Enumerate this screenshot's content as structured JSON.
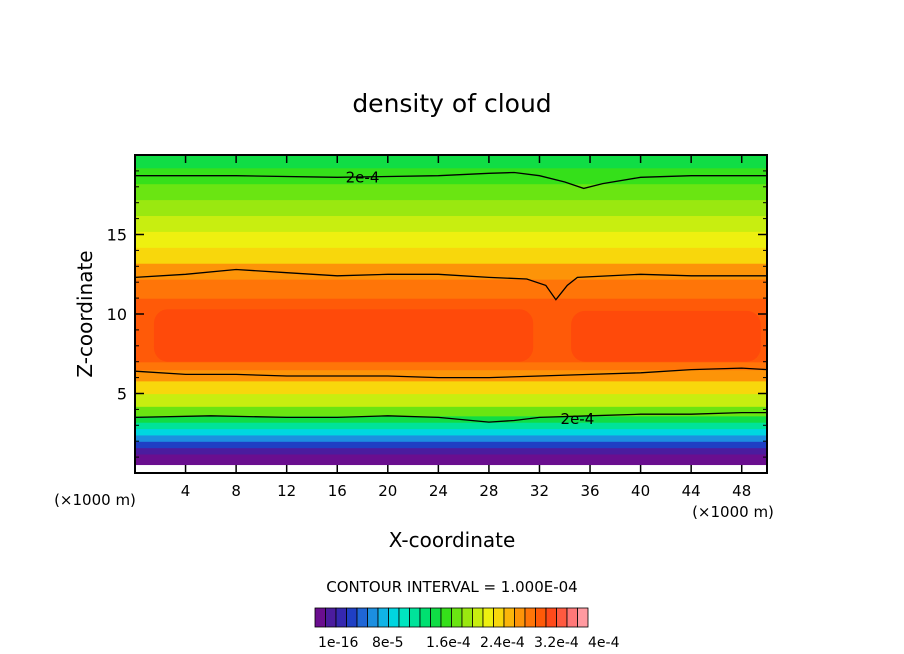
{
  "chart_data": {
    "type": "heatmap",
    "title": "density of cloud",
    "xlabel": "X-coordinate",
    "ylabel": "Z-coordinate",
    "x_unit": "(×1000 m)",
    "xlim": [
      0,
      50
    ],
    "ylim": [
      0,
      20
    ],
    "x_ticks": [
      4,
      8,
      12,
      16,
      20,
      24,
      28,
      32,
      36,
      40,
      44,
      48
    ],
    "y_ticks": [
      5,
      10,
      15
    ],
    "contour_interval_text": "CONTOUR INTERVAL = 1.000E-04",
    "contour_label": "2e-4",
    "colorbar_labels": [
      "1e-16",
      "8e-5",
      "1.6e-4",
      "2.4e-4",
      "3.2e-4",
      "4e-4"
    ],
    "colorbar_colors": [
      "#6a0e8f",
      "#4b1c9e",
      "#3528b0",
      "#1f3fc4",
      "#1f66d6",
      "#1c8fe0",
      "#10b4e6",
      "#00d6e0",
      "#00e6c0",
      "#00e39a",
      "#00e070",
      "#10dd45",
      "#35e01a",
      "#6ae512",
      "#9ae810",
      "#c8ee10",
      "#eef010",
      "#f8d70c",
      "#fbb50a",
      "#fd9408",
      "#ff7508",
      "#ff5a08",
      "#ff4a1a",
      "#ff5a40",
      "#ff7878",
      "#ff9aa0"
    ],
    "z_profile": [
      {
        "z": 0.5,
        "c": 0
      },
      {
        "z": 1.2,
        "c": 1
      },
      {
        "z": 1.6,
        "c": 3
      },
      {
        "z": 2.0,
        "c": 5
      },
      {
        "z": 2.4,
        "c": 7
      },
      {
        "z": 2.8,
        "c": 9
      },
      {
        "z": 3.2,
        "c": 11
      },
      {
        "z": 3.6,
        "c": 13
      },
      {
        "z": 4.2,
        "c": 15
      },
      {
        "z": 5.0,
        "c": 17
      },
      {
        "z": 5.8,
        "c": 19
      },
      {
        "z": 6.5,
        "c": 20
      },
      {
        "z": 7.0,
        "c": 21
      },
      {
        "z": 8.0,
        "c": 21
      },
      {
        "z": 9.0,
        "c": 21
      },
      {
        "z": 10.0,
        "c": 21
      },
      {
        "z": 11.0,
        "c": 20
      },
      {
        "z": 12.2,
        "c": 19
      },
      {
        "z": 13.2,
        "c": 17
      },
      {
        "z": 14.2,
        "c": 16
      },
      {
        "z": 15.2,
        "c": 15
      },
      {
        "z": 16.2,
        "c": 14
      },
      {
        "z": 17.2,
        "c": 13
      },
      {
        "z": 18.2,
        "c": 12
      },
      {
        "z": 19.2,
        "c": 11
      },
      {
        "z": 20.0,
        "c": 11
      }
    ],
    "core_color": "#ff4a0a",
    "core_blobs": [
      {
        "x0": 1.5,
        "x1": 31.5,
        "z0": 7.0,
        "z1": 10.3
      },
      {
        "x0": 34.5,
        "x1": 49.5,
        "z0": 7.0,
        "z1": 10.2
      }
    ],
    "contour_2e4_upper": [
      [
        0,
        12.3
      ],
      [
        4,
        12.5
      ],
      [
        8,
        12.8
      ],
      [
        12,
        12.6
      ],
      [
        16,
        12.4
      ],
      [
        20,
        12.5
      ],
      [
        24,
        12.5
      ],
      [
        28,
        12.3
      ],
      [
        31,
        12.2
      ],
      [
        32.5,
        11.8
      ],
      [
        33.3,
        10.9
      ],
      [
        34.2,
        11.8
      ],
      [
        35,
        12.3
      ],
      [
        40,
        12.5
      ],
      [
        44,
        12.4
      ],
      [
        50,
        12.4
      ]
    ],
    "contour_2e4_top": [
      [
        0,
        18.7
      ],
      [
        8,
        18.7
      ],
      [
        16,
        18.6
      ],
      [
        24,
        18.7
      ],
      [
        28,
        18.85
      ],
      [
        30,
        18.9
      ],
      [
        32,
        18.7
      ],
      [
        34,
        18.3
      ],
      [
        35.5,
        17.9
      ],
      [
        37,
        18.2
      ],
      [
        40,
        18.6
      ],
      [
        44,
        18.7
      ],
      [
        50,
        18.7
      ]
    ],
    "contour_2e4_lower": [
      [
        0,
        3.5
      ],
      [
        6,
        3.6
      ],
      [
        12,
        3.5
      ],
      [
        16,
        3.5
      ],
      [
        20,
        3.6
      ],
      [
        24,
        3.5
      ],
      [
        28,
        3.2
      ],
      [
        30,
        3.3
      ],
      [
        32,
        3.5
      ],
      [
        36,
        3.6
      ],
      [
        40,
        3.7
      ],
      [
        44,
        3.7
      ],
      [
        48,
        3.8
      ],
      [
        50,
        3.8
      ]
    ],
    "contour_mid_lower": [
      [
        0,
        6.4
      ],
      [
        4,
        6.2
      ],
      [
        8,
        6.2
      ],
      [
        12,
        6.1
      ],
      [
        16,
        6.1
      ],
      [
        20,
        6.1
      ],
      [
        24,
        6.0
      ],
      [
        28,
        6.0
      ],
      [
        32,
        6.1
      ],
      [
        36,
        6.2
      ],
      [
        40,
        6.3
      ],
      [
        44,
        6.5
      ],
      [
        48,
        6.6
      ],
      [
        50,
        6.5
      ]
    ]
  }
}
